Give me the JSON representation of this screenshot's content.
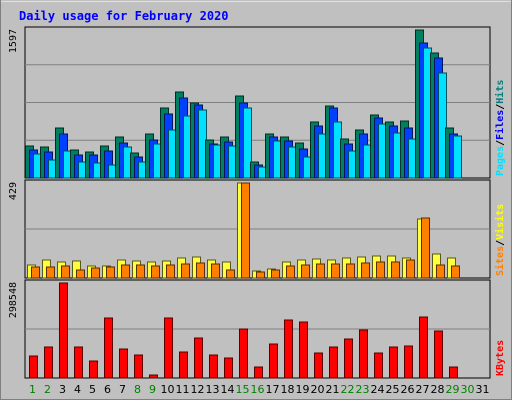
{
  "chart_data": {
    "type": "bar",
    "title": "Daily usage for February 2020",
    "categories": [
      "1",
      "2",
      "3",
      "4",
      "5",
      "6",
      "7",
      "8",
      "9",
      "10",
      "11",
      "12",
      "13",
      "14",
      "15",
      "16",
      "17",
      "18",
      "19",
      "20",
      "21",
      "22",
      "23",
      "24",
      "25",
      "26",
      "27",
      "28",
      "29",
      "30",
      "31"
    ],
    "weekend_days": [
      "1",
      "2",
      "8",
      "9",
      "15",
      "16",
      "22",
      "23",
      "29",
      "30"
    ],
    "panels": [
      {
        "id": "hits_files_pages",
        "max_label": "1597",
        "ymax": 1597,
        "legend": [
          "Pages",
          "/",
          "Files",
          "/",
          "Hits"
        ],
        "legend_colors": [
          "#00e0ff",
          "#000000",
          "#0000ff",
          "#000000",
          "#008080"
        ],
        "series": [
          {
            "name": "Hits",
            "color": "#008060",
            "values": [
              350,
              330,
              540,
              300,
              280,
              340,
              440,
              270,
              470,
              750,
              930,
              810,
              410,
              440,
              880,
              170,
              470,
              440,
              380,
              600,
              780,
              420,
              520,
              680,
              600,
              610,
              1597,
              1350,
              540,
              0,
              0
            ]
          },
          {
            "name": "Files",
            "color": "#0040ff",
            "values": [
              300,
              280,
              470,
              250,
              250,
              290,
              380,
              230,
              410,
              690,
              860,
              790,
              370,
              390,
              810,
              140,
              440,
              400,
              310,
              560,
              760,
              370,
              470,
              650,
              560,
              540,
              1460,
              1290,
              470,
              0,
              0
            ]
          },
          {
            "name": "Pages",
            "color": "#00e0ff",
            "values": [
              260,
              190,
              290,
              170,
              160,
              140,
              330,
              170,
              370,
              520,
              670,
              730,
              360,
              350,
              760,
              120,
              400,
              330,
              230,
              480,
              600,
              290,
              360,
              580,
              490,
              420,
              1400,
              1130,
              450,
              0,
              0
            ]
          }
        ]
      },
      {
        "id": "visits_sites",
        "max_label": "429",
        "ymax": 429,
        "legend": [
          "Sites",
          "/",
          "Visits"
        ],
        "legend_colors": [
          "#ff8000",
          "#000000",
          "#ffff00"
        ],
        "series": [
          {
            "name": "Visits",
            "color": "#ffff40",
            "values": [
              60,
              80,
              70,
              75,
              55,
              55,
              80,
              75,
              70,
              75,
              90,
              95,
              80,
              70,
              429,
              30,
              40,
              70,
              80,
              85,
              80,
              90,
              95,
              100,
              100,
              90,
              265,
              110,
              90,
              0,
              0
            ]
          },
          {
            "name": "Sites",
            "color": "#ff8000",
            "values": [
              50,
              48,
              52,
              38,
              45,
              48,
              60,
              58,
              55,
              58,
              65,
              68,
              62,
              38,
              429,
              28,
              36,
              56,
              60,
              62,
              62,
              65,
              68,
              70,
              70,
              80,
              270,
              60,
              55,
              0,
              0
            ]
          }
        ]
      },
      {
        "id": "kbytes",
        "max_label": "298548",
        "ymax": 298548,
        "legend": [
          "KBytes"
        ],
        "legend_colors": [
          "#ff0000"
        ],
        "series": [
          {
            "name": "KBytes",
            "color": "#ff0000",
            "values": [
              70000,
              96000,
              298548,
              98000,
              52000,
              188000,
              91000,
              71000,
              10000,
              188000,
              83000,
              125000,
              72000,
              62000,
              153000,
              33000,
              106000,
              183000,
              177000,
              77000,
              98000,
              123000,
              152000,
              77000,
              96000,
              102000,
              191000,
              147000,
              36000,
              0,
              0
            ]
          }
        ]
      }
    ]
  }
}
